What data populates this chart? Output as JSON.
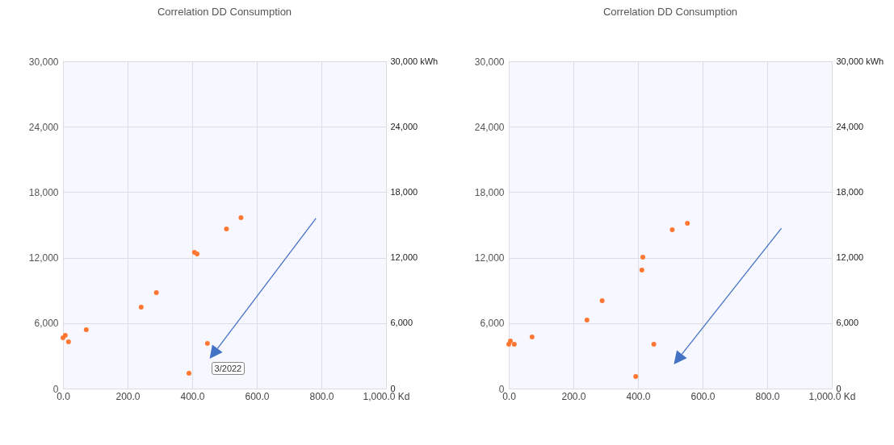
{
  "chart_data": [
    {
      "type": "scatter",
      "title": "Correlation DD Consumption",
      "marker": "circle",
      "grid": true,
      "legend": false,
      "series": [
        {
          "color": "#ff7733",
          "x": [
            0,
            7,
            17,
            72,
            242,
            289,
            407,
            415,
            447,
            390,
            506,
            551
          ],
          "values": [
            4650,
            4870,
            4280,
            5400,
            7460,
            8790,
            12490,
            12340,
            4140,
            1400,
            14630,
            15670
          ]
        }
      ],
      "xlim": [
        0,
        1000
      ],
      "xticks": [
        {
          "value": 0,
          "label": "0.0"
        },
        {
          "value": 200,
          "label": "200.0"
        },
        {
          "value": 400,
          "label": "400.0"
        },
        {
          "value": 600,
          "label": "600.0"
        },
        {
          "value": 800,
          "label": "800.0"
        },
        {
          "value": 1000,
          "label": "1,000.0 Kd"
        }
      ],
      "ylim": [
        0,
        30000
      ],
      "yticks": [
        0,
        {
          "value": 6000,
          "label": "6,000"
        },
        {
          "value": 12000,
          "label": "12,000"
        },
        {
          "value": 18000,
          "label": "18,000"
        },
        {
          "value": 24000,
          "label": "24,000"
        },
        {
          "value": 30000,
          "label": "30,000"
        }
      ],
      "y2lim": [
        0,
        30000
      ],
      "y2ticks": [
        0,
        {
          "value": 6000,
          "label": "6,000"
        },
        {
          "value": 12000,
          "label": "12,000"
        },
        {
          "value": 18000,
          "label": "18,000"
        },
        {
          "value": 24000,
          "label": "24,000"
        },
        {
          "value": 30000,
          "label": "30,000 kWh"
        }
      ],
      "annotations": [
        "3/2022"
      ]
    },
    {
      "type": "scatter",
      "title": "Correlation DD Consumption",
      "marker": "circle",
      "grid": true,
      "legend": false,
      "series": [
        {
          "color": "#ff7733",
          "x": [
            0,
            5,
            17,
            72,
            242,
            289,
            412,
            415,
            449,
            393,
            506,
            553
          ],
          "values": [
            4060,
            4360,
            4060,
            4730,
            6280,
            8060,
            10870,
            12050,
            4060,
            1110,
            14560,
            15150
          ]
        }
      ],
      "xlim": [
        0,
        1000
      ],
      "xticks": [
        {
          "value": 0,
          "label": "0.0"
        },
        {
          "value": 200,
          "label": "200.0"
        },
        {
          "value": 400,
          "label": "400.0"
        },
        {
          "value": 600,
          "label": "600.0"
        },
        {
          "value": 800,
          "label": "800.0"
        },
        {
          "value": 1000,
          "label": "1,000.0 Kd"
        }
      ],
      "ylim": [
        0,
        30000
      ],
      "yticks": [
        0,
        {
          "value": 6000,
          "label": "6,000"
        },
        {
          "value": 12000,
          "label": "12,000"
        },
        {
          "value": 18000,
          "label": "18,000"
        },
        {
          "value": 24000,
          "label": "24,000"
        },
        {
          "value": 30000,
          "label": "30,000"
        }
      ],
      "y2lim": [
        0,
        30000
      ],
      "y2ticks": [
        0,
        {
          "value": 6000,
          "label": "6,000"
        },
        {
          "value": 12000,
          "label": "12,000"
        },
        {
          "value": 18000,
          "label": "18,000"
        },
        {
          "value": 24000,
          "label": "24,000"
        },
        {
          "value": 30000,
          "label": "30,000 kWh"
        }
      ]
    }
  ]
}
